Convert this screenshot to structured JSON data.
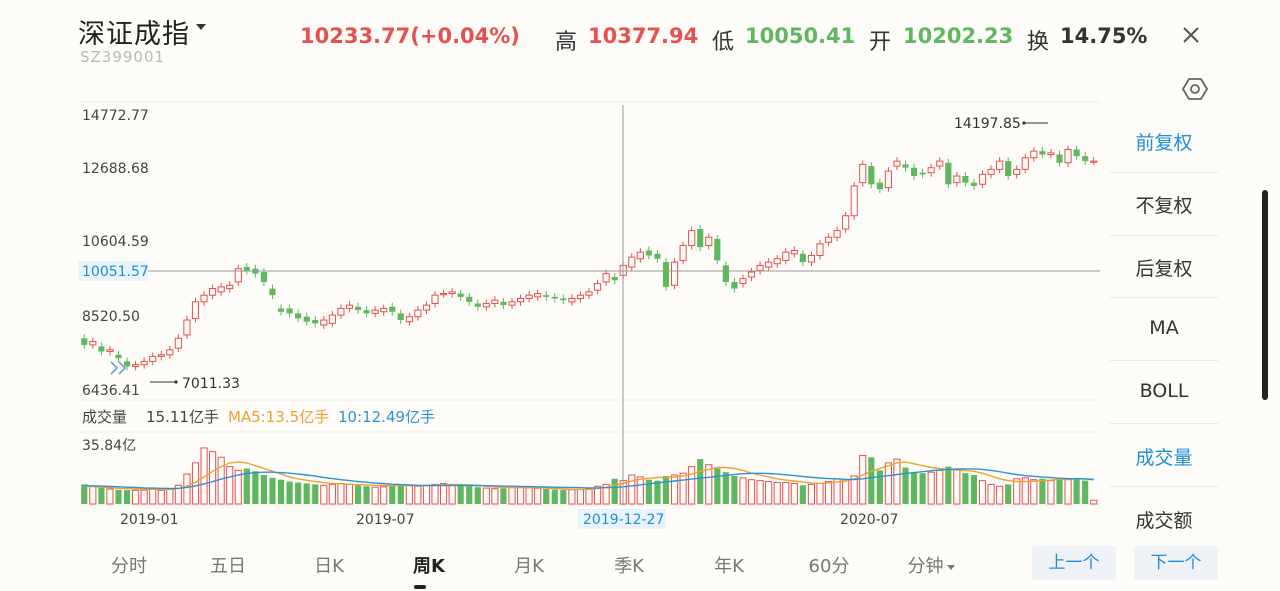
{
  "header": {
    "title": "深证成指",
    "code": "SZ399001",
    "price": "10233.77(+0.04%)",
    "high_label": "高",
    "high_value": "10377.94",
    "low_label": "低",
    "low_value": "10050.41",
    "open_label": "开",
    "open_value": "10202.23",
    "turnover_label": "换",
    "turnover_value": "14.75%"
  },
  "colors": {
    "up": "#e45151",
    "down": "#5fb85f",
    "ma5": "#f0a030",
    "ma10": "#2a95d6",
    "accent": "#1e8fd6"
  },
  "chart": {
    "price_ticks": [
      "14772.77",
      "12688.68",
      "10604.59",
      "8520.50",
      "6436.41"
    ],
    "crosshair_price": "10051.57",
    "max_label": "14197.85",
    "min_label": "7011.33",
    "volume_label": "成交量",
    "volume_value": "15.11亿手",
    "ma5_label": "MA5:13.5亿手",
    "ma10_label": "10:12.49亿手",
    "volume_max": "35.84亿",
    "x_labels": [
      "2019-01",
      "2019-07",
      "2020-07"
    ],
    "crosshair_date": "2019-12-27"
  },
  "chart_data": {
    "type": "candlestick",
    "y_range": [
      6436.41,
      14772.77
    ],
    "volume_max": 35.84,
    "candles": [
      [
        8000,
        7800
      ],
      [
        7800,
        7900
      ],
      [
        7750,
        7600
      ],
      [
        7600,
        7650
      ],
      [
        7500,
        7400
      ],
      [
        7300,
        7150
      ],
      [
        7150,
        7200
      ],
      [
        7200,
        7300
      ],
      [
        7300,
        7450
      ],
      [
        7450,
        7500
      ],
      [
        7500,
        7650
      ],
      [
        7700,
        8000
      ],
      [
        8100,
        8550
      ],
      [
        8600,
        9100
      ],
      [
        9100,
        9300
      ],
      [
        9300,
        9500
      ],
      [
        9400,
        9550
      ],
      [
        9500,
        9600
      ],
      [
        9700,
        10100
      ],
      [
        10150,
        10050
      ],
      [
        10100,
        9950
      ],
      [
        10000,
        9700
      ],
      [
        9500,
        9300
      ],
      [
        8900,
        8800
      ],
      [
        8900,
        8750
      ],
      [
        8750,
        8600
      ],
      [
        8650,
        8500
      ],
      [
        8550,
        8450
      ],
      [
        8400,
        8550
      ],
      [
        8450,
        8700
      ],
      [
        8700,
        8900
      ],
      [
        8900,
        9000
      ],
      [
        8950,
        8850
      ],
      [
        8850,
        8750
      ],
      [
        8750,
        8850
      ],
      [
        8800,
        8900
      ],
      [
        8950,
        8800
      ],
      [
        8750,
        8550
      ],
      [
        8500,
        8650
      ],
      [
        8650,
        8850
      ],
      [
        8850,
        9000
      ],
      [
        9050,
        9300
      ],
      [
        9350,
        9350
      ],
      [
        9350,
        9400
      ],
      [
        9350,
        9250
      ],
      [
        9250,
        9100
      ],
      [
        9050,
        8950
      ],
      [
        8950,
        9050
      ],
      [
        9050,
        9150
      ],
      [
        9100,
        9000
      ],
      [
        9000,
        9100
      ],
      [
        9100,
        9200
      ],
      [
        9200,
        9300
      ],
      [
        9250,
        9350
      ],
      [
        9300,
        9250
      ],
      [
        9250,
        9200
      ],
      [
        9200,
        9150
      ],
      [
        9100,
        9200
      ],
      [
        9200,
        9300
      ],
      [
        9300,
        9400
      ],
      [
        9450,
        9650
      ],
      [
        9700,
        9950
      ],
      [
        9850,
        9750
      ],
      [
        9900,
        10200
      ],
      [
        10150,
        10450
      ],
      [
        10400,
        10600
      ],
      [
        10650,
        10500
      ],
      [
        10550,
        10400
      ],
      [
        10300,
        9550
      ],
      [
        9600,
        10300
      ],
      [
        10350,
        10800
      ],
      [
        10800,
        11250
      ],
      [
        11300,
        10750
      ],
      [
        10800,
        11050
      ],
      [
        11000,
        10350
      ],
      [
        10200,
        9700
      ],
      [
        9700,
        9500
      ],
      [
        9650,
        9800
      ],
      [
        9850,
        10000
      ],
      [
        10050,
        10200
      ],
      [
        10150,
        10300
      ],
      [
        10250,
        10400
      ],
      [
        10350,
        10600
      ],
      [
        10550,
        10650
      ],
      [
        10550,
        10300
      ],
      [
        10300,
        10500
      ],
      [
        10500,
        10850
      ],
      [
        10900,
        11050
      ],
      [
        11050,
        11250
      ],
      [
        11300,
        11700
      ],
      [
        11700,
        12600
      ],
      [
        12700,
        13250
      ],
      [
        13200,
        12650
      ],
      [
        12700,
        12500
      ],
      [
        12550,
        13050
      ],
      [
        13200,
        13350
      ],
      [
        13250,
        13150
      ],
      [
        13150,
        12900
      ],
      [
        13000,
        12950
      ],
      [
        13000,
        13150
      ],
      [
        13200,
        13350
      ],
      [
        13300,
        12650
      ],
      [
        12700,
        12900
      ],
      [
        12900,
        12700
      ],
      [
        12700,
        12600
      ],
      [
        12650,
        12950
      ],
      [
        12950,
        13100
      ],
      [
        13100,
        13350
      ],
      [
        13350,
        12900
      ],
      [
        12950,
        13100
      ],
      [
        13100,
        13450
      ],
      [
        13450,
        13650
      ],
      [
        13650,
        13550
      ],
      [
        13550,
        13600
      ],
      [
        13550,
        13300
      ],
      [
        13300,
        13700
      ],
      [
        13700,
        13500
      ],
      [
        13500,
        13350
      ],
      [
        13350,
        13350
      ]
    ],
    "volume": [
      10.5,
      9.5,
      8.7,
      8.0,
      7.6,
      7.4,
      7.3,
      7.4,
      7.8,
      7.3,
      7.8,
      10.0,
      16.0,
      22.0,
      30.0,
      28.0,
      25.0,
      20.0,
      18.0,
      19.0,
      17.5,
      15.5,
      14.0,
      13.0,
      12.0,
      11.5,
      11.0,
      10.5,
      10.0,
      10.5,
      11.0,
      10.5,
      10.0,
      9.5,
      9.0,
      9.2,
      9.8,
      10.2,
      9.8,
      9.5,
      10.0,
      10.5,
      11.0,
      10.5,
      10.0,
      9.5,
      9.0,
      8.5,
      8.2,
      8.4,
      8.8,
      9.0,
      8.7,
      8.4,
      8.0,
      7.7,
      7.5,
      7.6,
      7.8,
      8.0,
      9.5,
      10.5,
      13.5,
      12.5,
      15.5,
      14.5,
      13.0,
      12.5,
      15.0,
      15.5,
      16.5,
      20.0,
      24.0,
      21.0,
      19.0,
      17.0,
      15.0,
      14.0,
      13.0,
      12.5,
      12.0,
      11.5,
      11.5,
      11.0,
      10.0,
      10.5,
      11.0,
      12.0,
      13.5,
      13.0,
      15.0,
      26.0,
      25.0,
      18.0,
      22.0,
      24.0,
      19.5,
      17.0,
      16.5,
      17.0,
      18.0,
      20.0,
      18.5,
      16.5,
      15.5,
      12.5,
      10.5,
      9.5,
      10.5,
      13.5,
      14.0,
      13.0,
      13.5,
      12.5,
      13.5,
      13.0,
      14.0,
      12.5,
      2.0
    ],
    "ma5": [
      9.5,
      9.3,
      9.0,
      8.7,
      8.4,
      8.2,
      8.0,
      7.9,
      7.9,
      7.8,
      7.8,
      8.2,
      9.5,
      11.5,
      14.5,
      17.5,
      20.0,
      22.0,
      22.5,
      22.0,
      20.5,
      19.0,
      17.5,
      16.0,
      14.5,
      13.5,
      12.7,
      12.0,
      11.4,
      11.0,
      10.8,
      10.6,
      10.4,
      10.2,
      10.0,
      9.9,
      9.9,
      9.9,
      9.8,
      9.8,
      9.9,
      10.1,
      10.3,
      10.4,
      10.4,
      10.2,
      10.0,
      9.5,
      9.1,
      8.9,
      8.7,
      8.7,
      8.7,
      8.6,
      8.5,
      8.3,
      8.0,
      7.8,
      7.7,
      7.8,
      8.3,
      9.0,
      10.0,
      11.0,
      12.3,
      13.2,
      13.8,
      14.2,
      14.2,
      14.5,
      15.0,
      16.0,
      17.5,
      18.5,
      19.5,
      19.5,
      19.0,
      18.0,
      16.5,
      15.5,
      14.5,
      13.5,
      12.8,
      12.3,
      11.7,
      11.3,
      11.0,
      11.3,
      11.8,
      12.3,
      13.3,
      15.5,
      17.5,
      19.0,
      20.5,
      22.0,
      22.5,
      21.5,
      20.5,
      19.5,
      19.0,
      18.5,
      18.2,
      18.0,
      17.5,
      16.5,
      15.0,
      13.5,
      12.5,
      12.0,
      12.0,
      12.2,
      12.5,
      12.8,
      13.2,
      13.3,
      13.5,
      13.4,
      12.8
    ],
    "ma10": [
      9.8,
      9.7,
      9.6,
      9.4,
      9.2,
      9.0,
      8.8,
      8.6,
      8.5,
      8.4,
      8.3,
      8.4,
      8.9,
      9.7,
      10.8,
      12.0,
      13.3,
      14.5,
      15.5,
      16.3,
      16.8,
      17.0,
      17.0,
      16.8,
      16.5,
      16.0,
      15.5,
      14.9,
      14.2,
      13.6,
      13.0,
      12.5,
      12.0,
      11.6,
      11.2,
      10.9,
      10.6,
      10.4,
      10.2,
      10.0,
      9.9,
      9.9,
      9.9,
      9.9,
      9.9,
      9.9,
      9.9,
      9.8,
      9.7,
      9.6,
      9.5,
      9.4,
      9.3,
      9.2,
      9.1,
      9.0,
      8.9,
      8.8,
      8.7,
      8.6,
      8.6,
      8.7,
      8.9,
      9.2,
      9.7,
      10.2,
      10.8,
      11.3,
      11.8,
      12.3,
      12.8,
      13.3,
      13.8,
      14.3,
      14.8,
      15.3,
      15.8,
      16.2,
      16.4,
      16.4,
      16.3,
      16.0,
      15.6,
      15.2,
      14.7,
      14.3,
      13.9,
      13.6,
      13.4,
      13.2,
      13.1,
      13.5,
      14.1,
      14.6,
      15.2,
      15.8,
      16.3,
      16.8,
      17.3,
      17.8,
      18.2,
      18.5,
      18.7,
      18.8,
      18.8,
      18.5,
      18.0,
      17.3,
      16.5,
      15.8,
      15.2,
      14.8,
      14.4,
      14.1,
      13.8,
      13.6,
      13.5,
      13.4,
      13.2
    ]
  },
  "side_menu": [
    "前复权",
    "不复权",
    "后复权",
    "MA",
    "BOLL",
    "成交量",
    "成交额"
  ],
  "tabs": [
    "分时",
    "五日",
    "日K",
    "周K",
    "月K",
    "季K",
    "年K",
    "60分",
    "分钟"
  ],
  "nav": {
    "prev": "上一个",
    "next": "下一个"
  }
}
